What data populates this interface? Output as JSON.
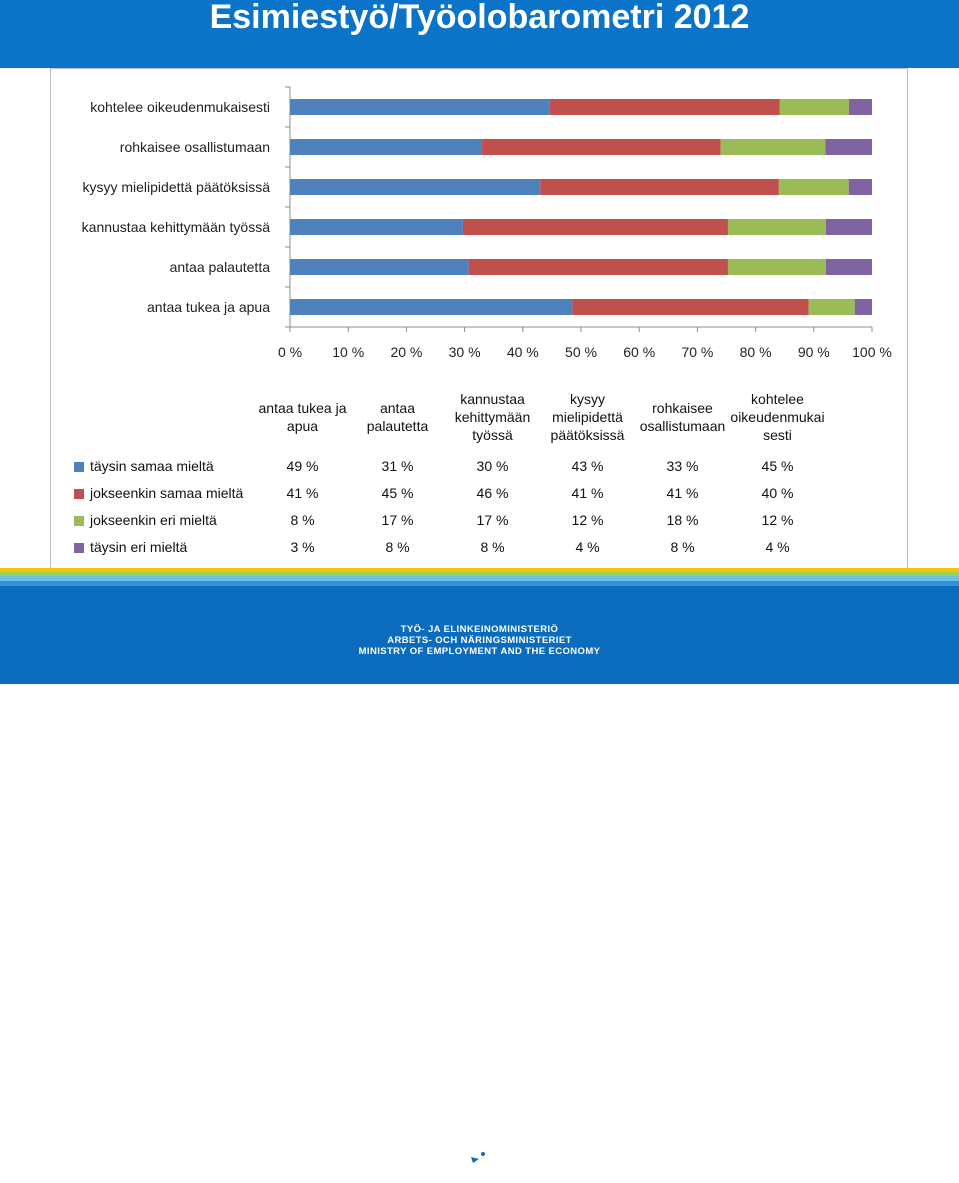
{
  "page": {
    "title": "Esimiestyö/Työolobarometri 2012"
  },
  "colors": {
    "header": "#0b74c8",
    "footer": "#0b6cbd",
    "series": [
      "#4f81bd",
      "#c0504d",
      "#9bbb59",
      "#8064a2"
    ]
  },
  "chart_data": {
    "type": "bar",
    "orientation": "horizontal",
    "stacked": "percent",
    "categories": [
      "antaa tukea ja apua",
      "antaa palautetta",
      "kannustaa kehittymään työssä",
      "kysyy mielipidettä päätöksissä",
      "rohkaisee osallistumaan",
      "kohtelee oikeudenmukaisesti"
    ],
    "series": [
      {
        "name": "täysin samaa mieltä",
        "values": [
          49,
          31,
          30,
          43,
          33,
          45
        ]
      },
      {
        "name": "jokseenkin samaa mieltä",
        "values": [
          41,
          45,
          46,
          41,
          41,
          40
        ]
      },
      {
        "name": "jokseenkin eri mieltä",
        "values": [
          8,
          17,
          17,
          12,
          18,
          12
        ]
      },
      {
        "name": "täysin eri mieltä",
        "values": [
          3,
          8,
          8,
          4,
          8,
          4
        ]
      }
    ],
    "xlim": [
      0,
      100
    ],
    "x_ticks": [
      "0 %",
      "10 %",
      "20 %",
      "30 %",
      "40 %",
      "50 %",
      "60 %",
      "70 %",
      "80 %",
      "90 %",
      "100 %"
    ],
    "legend": "data table below chart"
  },
  "table": {
    "headers": [
      [
        "antaa tukea ja",
        "apua"
      ],
      [
        "antaa",
        "palautetta"
      ],
      [
        "kannustaa",
        "kehittymään",
        "työssä"
      ],
      [
        "kysyy",
        "mielipidettä",
        "päätöksissä"
      ],
      [
        "rohkaisee",
        "osallistumaan"
      ],
      [
        "kohtelee",
        "oikeudenmukai",
        "sesti"
      ]
    ],
    "rows": [
      {
        "label": "täysin samaa mieltä",
        "values": [
          "49 %",
          "31 %",
          "30 %",
          "43 %",
          "33 %",
          "45 %"
        ]
      },
      {
        "label": "jokseenkin samaa mieltä",
        "values": [
          "41 %",
          "45 %",
          "46 %",
          "41 %",
          "41 %",
          "40 %"
        ]
      },
      {
        "label": "jokseenkin eri mieltä",
        "values": [
          "8 %",
          "17 %",
          "17 %",
          "12 %",
          "18 %",
          "12 %"
        ]
      },
      {
        "label": "täysin eri mieltä",
        "values": [
          "3 %",
          "8 %",
          "8 %",
          "4 %",
          "8 %",
          "4 %"
        ]
      }
    ]
  },
  "footer": {
    "lines": [
      "TYÖ- JA ELINKEINOMINISTERIÖ",
      "ARBETS- OCH NÄRINGSMINISTERIET",
      "MINISTRY OF EMPLOYMENT AND THE ECONOMY"
    ]
  }
}
